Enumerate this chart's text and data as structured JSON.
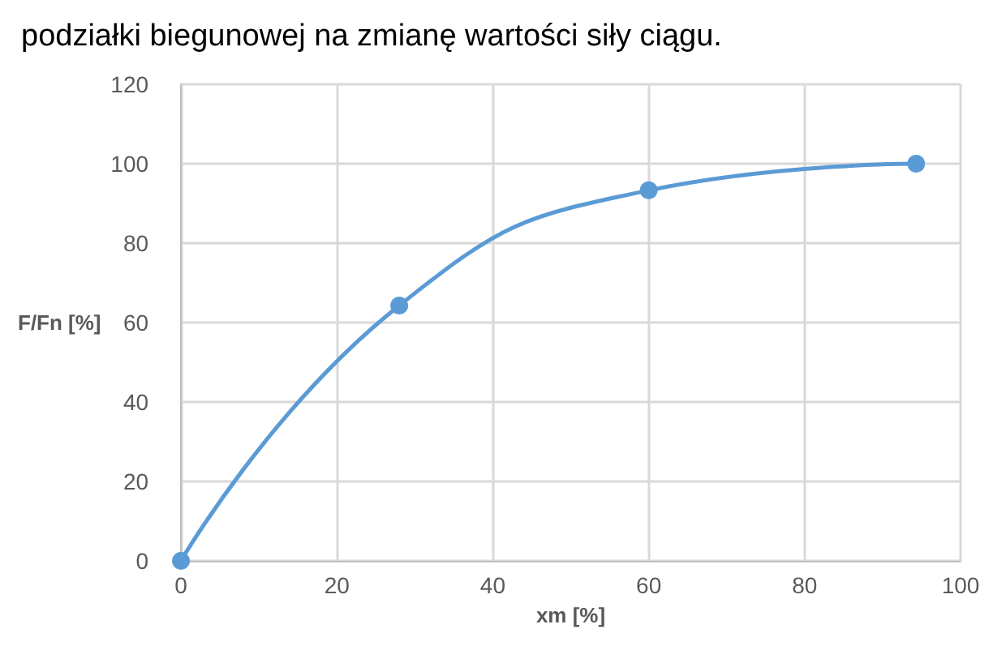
{
  "chart_data": {
    "type": "line",
    "title": "podziałki biegunowej na zmianę wartości siły ciągu.",
    "xlabel": "xm [%]",
    "ylabel": "F/Fn [%]",
    "x": [
      0,
      28,
      60,
      94.3
    ],
    "series": [
      {
        "color": "#5b9bd5",
        "values": [
          0,
          64.3,
          93.3,
          100
        ]
      }
    ],
    "xlim": [
      0,
      100
    ],
    "xticks": [
      0,
      20,
      40,
      60,
      80,
      100
    ],
    "ylim": [
      0,
      120
    ],
    "yticks": [
      0,
      20,
      40,
      60,
      80,
      100,
      120
    ],
    "grid": true,
    "marker": "circle",
    "line_style": "solid"
  }
}
